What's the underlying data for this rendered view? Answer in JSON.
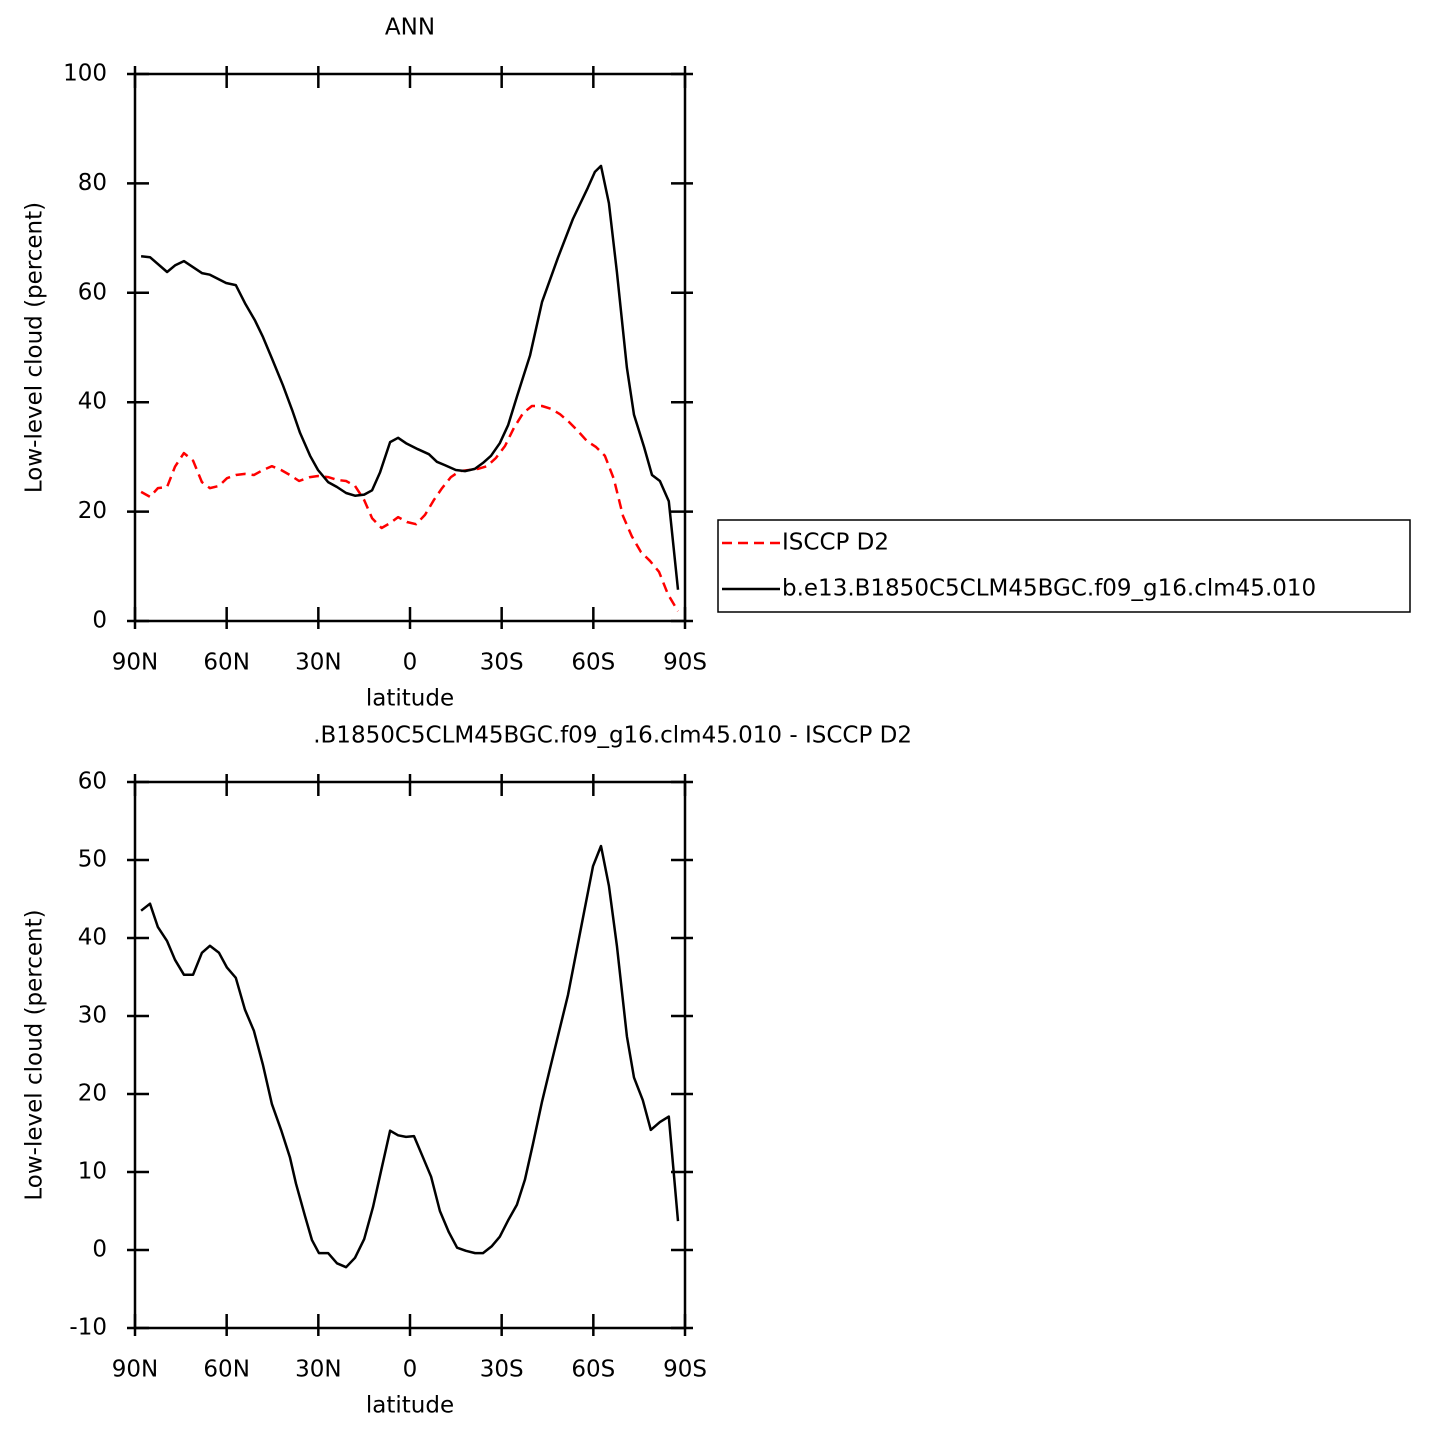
{
  "chart_data": [
    {
      "type": "line",
      "title": "ANN",
      "xlabel": "latitude",
      "ylabel": "Low-level cloud (percent)",
      "xlim": [
        90,
        -90
      ],
      "xticks": [
        {
          "value": 90,
          "label": "90N"
        },
        {
          "value": 60,
          "label": "60N"
        },
        {
          "value": 30,
          "label": "30N"
        },
        0,
        {
          "value": -30,
          "label": "30S"
        },
        {
          "value": -60,
          "label": "60S"
        },
        {
          "value": -90,
          "label": "90S"
        }
      ],
      "ylim": [
        0,
        100
      ],
      "yticks": [
        0,
        20,
        40,
        60,
        80,
        100
      ],
      "legend": "right",
      "series": [
        {
          "name": "ISCCP D2",
          "color": "#ff0000",
          "line_style": "dashed",
          "x": [
            88,
            85.1,
            82.5,
            79.5,
            76.9,
            74,
            71,
            68.1,
            65.5,
            62.5,
            59.9,
            57,
            54,
            51.1,
            48.1,
            45.2,
            42.2,
            39.3,
            36.3,
            32.7,
            30.1,
            26.8,
            23.9,
            20.9,
            18,
            15,
            12.4,
            9.3,
            6.5,
            3.9,
            1.0,
            -2.0,
            -4.9,
            -7.8,
            -10.5,
            -13.4,
            -16.3,
            -19.3,
            -22.2,
            -25.2,
            -28.1,
            -31.1,
            -34.0,
            -37.0,
            -39.9,
            -43.2,
            -46.1,
            -49.1,
            -52.0,
            -55.0,
            -57.9,
            -60.9,
            -63.8,
            -66.7,
            -69.7,
            -72.6,
            -75.6,
            -78.5,
            -81.5,
            -84.4,
            -87.7
          ],
          "values": [
            23.6,
            22.7,
            24.3,
            24.5,
            28.2,
            30.7,
            29.3,
            25.4,
            24.3,
            24.7,
            26.1,
            26.7,
            26.9,
            26.7,
            27.6,
            28.3,
            27.6,
            26.7,
            25.6,
            26.3,
            26.5,
            26.3,
            25.8,
            25.6,
            24.7,
            22.1,
            18.8,
            17.0,
            17.9,
            19.0,
            18.1,
            17.7,
            19.4,
            22.1,
            24.3,
            26.3,
            27.4,
            27.6,
            27.8,
            28.3,
            29.8,
            32.0,
            35.3,
            38.0,
            39.3,
            39.3,
            38.8,
            37.8,
            36.4,
            34.7,
            32.9,
            31.8,
            30.2,
            26.0,
            19.2,
            15.5,
            12.6,
            11.0,
            9.0,
            4.9,
            1.8
          ]
        },
        {
          "name": "b.e13.B1850C5CLM45BGC.f09_g16.clm45.010",
          "color": "#000000",
          "line_style": "solid",
          "x": [
            88.0,
            85.1,
            79.5,
            76.9,
            74.0,
            68.1,
            65.5,
            60.2,
            57.0,
            54.0,
            50.8,
            48.1,
            45.2,
            41.6,
            38.6,
            36.0,
            32.7,
            30.1,
            26.8,
            23.9,
            20.9,
            18.0,
            15.0,
            12.4,
            9.8,
            6.5,
            3.9,
            1.3,
            -2.6,
            -6.2,
            -8.8,
            -11.4,
            -15.0,
            -18.0,
            -21.2,
            -23.9,
            -26.5,
            -29.4,
            -32.1,
            -35.0,
            -39.3,
            -43.2,
            -48.4,
            -53.3,
            -58.2,
            -60.5,
            -62.5,
            -65.1,
            -67.7,
            -71.0,
            -73.3,
            -76.6,
            -79.2,
            -81.8,
            -84.7,
            -87.7
          ],
          "values": [
            66.7,
            66.5,
            63.8,
            65.0,
            65.8,
            63.6,
            63.3,
            61.8,
            61.4,
            58.1,
            55,
            51.9,
            48,
            43.1,
            38.6,
            34.4,
            30.2,
            27.6,
            25.4,
            24.5,
            23.4,
            22.9,
            23.1,
            23.9,
            27.2,
            32.7,
            33.5,
            32.5,
            31.4,
            30.5,
            29.1,
            28.5,
            27.6,
            27.4,
            27.8,
            28.9,
            30.2,
            32.5,
            35.8,
            41,
            48.6,
            58.3,
            66.4,
            73.5,
            79.2,
            82.1,
            83.2,
            76.4,
            63.8,
            46.3,
            37.7,
            31.8,
            26.7,
            25.6,
            21.9,
            5.7
          ]
        }
      ]
    },
    {
      "type": "line",
      "title": ".B1850C5CLM45BGC.f09_g16.clm45.010 - ISCCP D2",
      "xlabel": "latitude",
      "ylabel": "Low-level cloud (percent)",
      "xlim": [
        90,
        -90
      ],
      "xticks": [
        {
          "value": 90,
          "label": "90N"
        },
        {
          "value": 60,
          "label": "60N"
        },
        {
          "value": 30,
          "label": "30N"
        },
        0,
        {
          "value": -30,
          "label": "30S"
        },
        {
          "value": -60,
          "label": "60S"
        },
        {
          "value": -90,
          "label": "90S"
        }
      ],
      "ylim": [
        -10,
        60
      ],
      "yticks": [
        -10,
        0,
        10,
        20,
        30,
        40,
        50,
        60
      ],
      "series": [
        {
          "color": "#000000",
          "line_style": "solid",
          "x": [
            88,
            85.1,
            82.5,
            79.5,
            76.9,
            74,
            71,
            68.1,
            65.5,
            62.5,
            59.9,
            57,
            54,
            51.1,
            48.1,
            45.2,
            42.2,
            39.3,
            37.3,
            34.4,
            32.1,
            29.8,
            26.8,
            23.9,
            20.9,
            18,
            15,
            12.1,
            9.5,
            6.5,
            3.9,
            1.3,
            -1.3,
            -3.9,
            -6.9,
            -9.8,
            -12.7,
            -15.4,
            -18.3,
            -21.3,
            -23.9,
            -26.8,
            -29.4,
            -32.1,
            -35,
            -37.6,
            -40.2,
            -43.2,
            -45.8,
            -51.7,
            -56.9,
            -59.9,
            -62.5,
            -65.1,
            -67.7,
            -71.0,
            -73.3,
            -76.2,
            -78.8,
            -81.8,
            -84.7,
            -87.7
          ],
          "values": [
            43.5,
            44.4,
            41.4,
            39.6,
            37.2,
            35.3,
            35.3,
            38.1,
            39.0,
            38.1,
            36.2,
            34.9,
            30.8,
            28.1,
            23.7,
            18.7,
            15.4,
            11.9,
            8.5,
            4.4,
            1.3,
            -0.4,
            -0.4,
            -1.7,
            -2.2,
            -1.0,
            1.4,
            5.5,
            10.1,
            15.3,
            14.7,
            14.5,
            14.6,
            12.2,
            9.4,
            5.0,
            2.3,
            0.3,
            -0.1,
            -0.4,
            -0.4,
            0.5,
            1.7,
            3.8,
            5.8,
            9.0,
            13.5,
            19.0,
            23.2,
            32.7,
            43.2,
            49.2,
            51.8,
            46.7,
            39.0,
            27.4,
            22.1,
            19.2,
            15.4,
            16.4,
            17.1,
            3.7
          ]
        }
      ]
    }
  ]
}
